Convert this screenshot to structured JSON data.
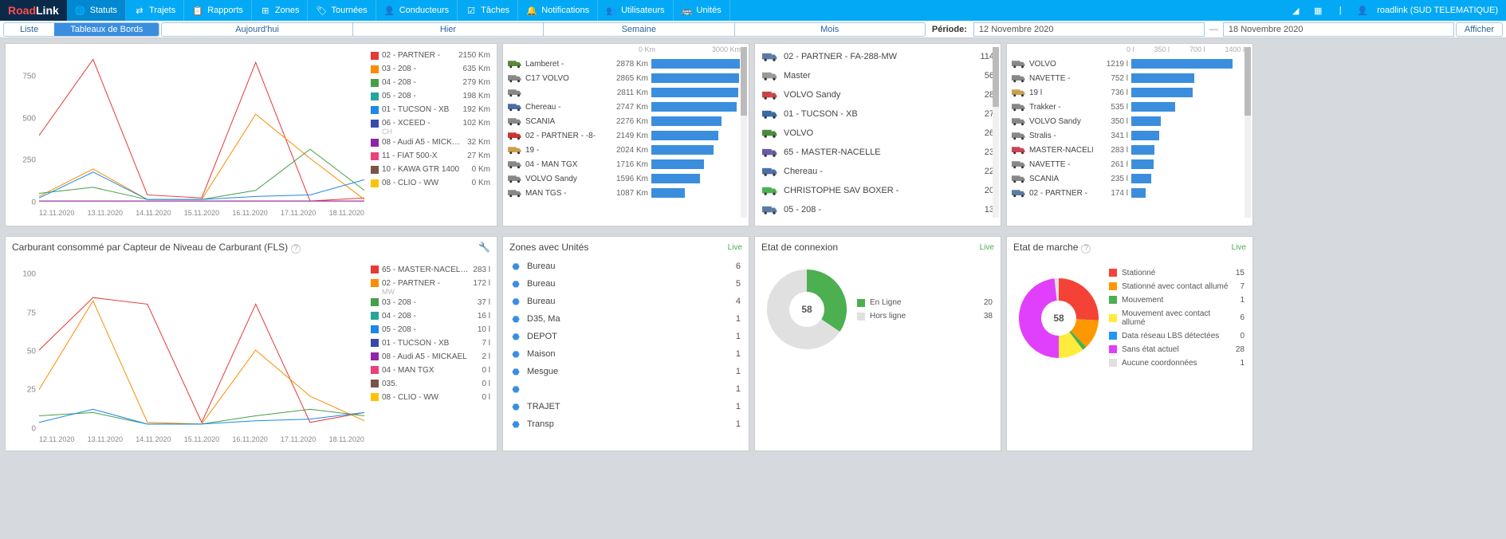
{
  "brand": {
    "road": "Road",
    "link": "Link"
  },
  "nav": [
    {
      "label": "Statuts",
      "active": true
    },
    {
      "label": "Trajets"
    },
    {
      "label": "Rapports"
    },
    {
      "label": "Zones"
    },
    {
      "label": "Tournées"
    },
    {
      "label": "Conducteurs"
    },
    {
      "label": "Tâches"
    },
    {
      "label": "Notifications"
    },
    {
      "label": "Utilisateurs"
    },
    {
      "label": "Unités"
    }
  ],
  "user": "roadlink (SUD TELEMATIQUE)",
  "view_toggle": {
    "list": "Liste",
    "dash": "Tableaux de Bords"
  },
  "time_tabs": [
    "Aujourd'hui",
    "Hier",
    "Semaine",
    "Mois"
  ],
  "period_label": "Période:",
  "date_from": "12 Novembre 2020",
  "date_to": "18 Novembre 2020",
  "show_btn": "Afficher",
  "chart1": {
    "yticks": [
      {
        "v": "0",
        "p": 100
      },
      {
        "v": "250",
        "p": 73
      },
      {
        "v": "500",
        "p": 46
      },
      {
        "v": "750",
        "p": 19
      }
    ],
    "xticks": [
      "12.11.2020",
      "13.11.2020",
      "14.11.2020",
      "15.11.2020",
      "16.11.2020",
      "17.11.2020",
      "18.11.2020"
    ],
    "series": [
      {
        "color": "#e53935",
        "pts": [
          [
            0,
            56
          ],
          [
            16.6,
            6
          ],
          [
            33.3,
            95
          ],
          [
            50,
            97
          ],
          [
            66.6,
            8
          ],
          [
            83.3,
            99
          ],
          [
            100,
            97
          ]
        ]
      },
      {
        "color": "#fb8c00",
        "pts": [
          [
            0,
            96
          ],
          [
            16.6,
            78
          ],
          [
            33.3,
            98
          ],
          [
            50,
            98
          ],
          [
            66.6,
            42
          ],
          [
            83.3,
            71
          ],
          [
            100,
            98
          ]
        ]
      },
      {
        "color": "#43a047",
        "pts": [
          [
            0,
            94
          ],
          [
            16.6,
            90
          ],
          [
            33.3,
            98
          ],
          [
            50,
            98
          ],
          [
            66.6,
            92
          ],
          [
            83.3,
            65
          ],
          [
            100,
            92
          ]
        ]
      },
      {
        "color": "#1e88e5",
        "pts": [
          [
            0,
            97
          ],
          [
            16.6,
            80
          ],
          [
            33.3,
            98
          ],
          [
            50,
            98
          ],
          [
            66.6,
            96
          ],
          [
            83.3,
            95
          ],
          [
            100,
            85
          ]
        ]
      },
      {
        "color": "#ec407a",
        "pts": [
          [
            0,
            99
          ],
          [
            16.6,
            99
          ],
          [
            33.3,
            99
          ],
          [
            50,
            99
          ],
          [
            66.6,
            99
          ],
          [
            83.3,
            99
          ],
          [
            100,
            99
          ]
        ]
      },
      {
        "color": "#8e24aa",
        "pts": [
          [
            0,
            99
          ],
          [
            16.6,
            99
          ],
          [
            33.3,
            99
          ],
          [
            50,
            99
          ],
          [
            66.6,
            99
          ],
          [
            83.3,
            99
          ],
          [
            100,
            99
          ]
        ]
      }
    ],
    "legend": [
      {
        "color": "#e53935",
        "label": "02 - PARTNER -",
        "val": "2150 Km"
      },
      {
        "color": "#fb8c00",
        "label": "03 - 208 -",
        "val": "635 Km"
      },
      {
        "color": "#43a047",
        "label": "04 - 208 -",
        "val": "279 Km"
      },
      {
        "color": "#26a69a",
        "label": "05 - 208 -",
        "val": "198 Km"
      },
      {
        "color": "#1e88e5",
        "label": "01 - TUCSON - XB",
        "val": "192 Km"
      },
      {
        "color": "#3949ab",
        "label": "06 - XCEED -",
        "sub": "CH",
        "val": "102 Km"
      },
      {
        "color": "#8e24aa",
        "label": "08 - Audi A5 - MICKAEL",
        "val": "32 Km"
      },
      {
        "color": "#ec407a",
        "label": "11 - FIAT 500-X",
        "val": "27 Km"
      },
      {
        "color": "#795548",
        "label": "10 - KAWA GTR 1400",
        "val": "0 Km"
      },
      {
        "color": "#ffc107",
        "label": "08 - CLIO - WW",
        "val": "0 Km"
      }
    ]
  },
  "fuel_panel": {
    "title": "Carburant consommé par Capteur de Niveau de Carburant (FLS)",
    "yticks": [
      {
        "v": "0",
        "p": 100
      },
      {
        "v": "25",
        "p": 77
      },
      {
        "v": "50",
        "p": 54
      },
      {
        "v": "75",
        "p": 31
      },
      {
        "v": "100",
        "p": 8
      }
    ],
    "xticks": [
      "12.11.2020",
      "13.11.2020",
      "14.11.2020",
      "15.11.2020",
      "16.11.2020",
      "17.11.2020",
      "18.11.2020"
    ],
    "series": [
      {
        "color": "#e53935",
        "pts": [
          [
            0,
            52
          ],
          [
            16.6,
            20
          ],
          [
            33.3,
            24
          ],
          [
            50,
            96
          ],
          [
            66.6,
            24
          ],
          [
            83.3,
            96
          ],
          [
            100,
            90
          ]
        ]
      },
      {
        "color": "#fb8c00",
        "pts": [
          [
            0,
            76
          ],
          [
            16.6,
            22
          ],
          [
            33.3,
            96
          ],
          [
            50,
            97
          ],
          [
            66.6,
            52
          ],
          [
            83.3,
            80
          ],
          [
            100,
            95
          ]
        ]
      },
      {
        "color": "#43a047",
        "pts": [
          [
            0,
            92
          ],
          [
            16.6,
            90
          ],
          [
            33.3,
            97
          ],
          [
            50,
            97
          ],
          [
            66.6,
            92
          ],
          [
            83.3,
            88
          ],
          [
            100,
            92
          ]
        ]
      },
      {
        "color": "#1e88e5",
        "pts": [
          [
            0,
            96
          ],
          [
            16.6,
            88
          ],
          [
            33.3,
            97
          ],
          [
            50,
            97
          ],
          [
            66.6,
            95
          ],
          [
            83.3,
            94
          ],
          [
            100,
            90
          ]
        ]
      }
    ],
    "legend": [
      {
        "color": "#e53935",
        "label": "65 - MASTER-NACELLE -",
        "val": "283 l"
      },
      {
        "color": "#fb8c00",
        "label": "02 - PARTNER -",
        "sub": "MW",
        "val": "172 l"
      },
      {
        "color": "#43a047",
        "label": "03 - 208 -",
        "val": "37 l"
      },
      {
        "color": "#26a69a",
        "label": "04 - 208 -",
        "val": "16 l"
      },
      {
        "color": "#1e88e5",
        "label": "05 - 208 -",
        "val": "10 l"
      },
      {
        "color": "#3949ab",
        "label": "01 - TUCSON - XB",
        "val": "7 l"
      },
      {
        "color": "#8e24aa",
        "label": "08 - Audi A5 - MICKAEL",
        "val": "2 l"
      },
      {
        "color": "#ec407a",
        "label": "04 - MAN TGX",
        "val": "0 l"
      },
      {
        "color": "#795548",
        "label": "035.",
        "val": "0 l"
      },
      {
        "color": "#ffc107",
        "label": "08 - CLIO - WW",
        "val": "0 l"
      }
    ]
  },
  "km_list": {
    "xscale": [
      "0 Km",
      "3000 Km"
    ],
    "rows": [
      {
        "name": "Lamberet -",
        "val": "2878 Km",
        "pct": 96,
        "c": "#5a8a3a"
      },
      {
        "name": "C17 VOLVO",
        "val": "2865 Km",
        "pct": 95,
        "c": "#888"
      },
      {
        "name": "",
        "val": "2811 Km",
        "pct": 94,
        "c": "#888"
      },
      {
        "name": "Chereau -",
        "val": "2747 Km",
        "pct": 92,
        "c": "#4a6fa5"
      },
      {
        "name": "SCANIA",
        "val": "2276 Km",
        "pct": 76,
        "c": "#888"
      },
      {
        "name": "02 - PARTNER - -8-",
        "val": "2149 Km",
        "pct": 72,
        "c": "#cc3333"
      },
      {
        "name": "19 -",
        "val": "2024 Km",
        "pct": 67,
        "c": "#c9a050"
      },
      {
        "name": "04 - MAN TGX",
        "val": "1716 Km",
        "pct": 57,
        "c": "#888"
      },
      {
        "name": "VOLVO Sandy",
        "val": "1596 Km",
        "pct": 53,
        "c": "#888"
      },
      {
        "name": "MAN TGS -",
        "val": "1087 Km",
        "pct": 36,
        "c": "#888"
      }
    ]
  },
  "trips_list": {
    "rows": [
      {
        "name": "02 - PARTNER - FA-288-MW",
        "val": "114",
        "c": "#5a7ba5"
      },
      {
        "name": "Master",
        "val": "56",
        "c": "#999"
      },
      {
        "name": "VOLVO Sandy",
        "val": "28",
        "c": "#c94545"
      },
      {
        "name": "01 - TUCSON - XB",
        "val": "27",
        "c": "#3a6aa5"
      },
      {
        "name": "VOLVO",
        "val": "26",
        "c": "#4a8a3a"
      },
      {
        "name": "65 - MASTER-NACELLE",
        "val": "23",
        "c": "#6a5aa5"
      },
      {
        "name": "Chereau -",
        "val": "22",
        "c": "#4a6fa5"
      },
      {
        "name": "CHRISTOPHE SAV BOXER -",
        "val": "20",
        "c": "#4caf50"
      },
      {
        "name": "05 - 208 -",
        "val": "13",
        "c": "#5a7ba5"
      }
    ]
  },
  "liters_list": {
    "xscale": [
      "0 l",
      "350 l",
      "700 l",
      "1400 l"
    ],
    "rows": [
      {
        "name": "VOLVO",
        "val": "1219 l",
        "pct": 87,
        "c": "#888"
      },
      {
        "name": "NAVETTE -",
        "val": "752 l",
        "pct": 54,
        "c": "#888"
      },
      {
        "name": "19 l",
        "val": "736 l",
        "pct": 53,
        "c": "#c9a050"
      },
      {
        "name": "Trakker -",
        "val": "535 l",
        "pct": 38,
        "c": "#888"
      },
      {
        "name": "VOLVO Sandy",
        "val": "350 l",
        "pct": 25,
        "c": "#888"
      },
      {
        "name": "Stralis -",
        "val": "341 l",
        "pct": 24,
        "c": "#888"
      },
      {
        "name": "MASTER-NACELLE -",
        "val": "283 l",
        "pct": 20,
        "c": "#cc4455"
      },
      {
        "name": "NAVETTE -",
        "val": "261 l",
        "pct": 19,
        "c": "#888"
      },
      {
        "name": "SCANIA",
        "val": "235 l",
        "pct": 17,
        "c": "#888"
      },
      {
        "name": "02 - PARTNER -",
        "val": "174 l",
        "pct": 12,
        "c": "#5a7ba5"
      }
    ]
  },
  "zones": {
    "title": "Zones avec Unités",
    "rows": [
      {
        "name": "Bureau",
        "val": "6"
      },
      {
        "name": "Bureau",
        "val": "5"
      },
      {
        "name": "Bureau",
        "val": "4"
      },
      {
        "name": "D35, Ma",
        "val": "1"
      },
      {
        "name": "DEPOT",
        "val": "1"
      },
      {
        "name": "Maison",
        "val": "1"
      },
      {
        "name": "Mesgue",
        "val": "1"
      },
      {
        "name": "",
        "val": "1"
      },
      {
        "name": "TRAJET",
        "val": "1"
      },
      {
        "name": "Transp",
        "val": "1"
      }
    ]
  },
  "conn": {
    "title": "Etat de connexion",
    "total": "58",
    "slices": [
      {
        "label": "En Ligne",
        "val": "20",
        "color": "#4caf50"
      },
      {
        "label": "Hors ligne",
        "val": "38",
        "color": "#e0e0e0"
      }
    ]
  },
  "march": {
    "title": "Etat de marche",
    "total": "58",
    "slices": [
      {
        "label": "Stationné",
        "val": "15",
        "color": "#f44336"
      },
      {
        "label": "Stationné avec contact allumé",
        "val": "7",
        "color": "#ff9800"
      },
      {
        "label": "Mouvement",
        "val": "1",
        "color": "#4caf50"
      },
      {
        "label": "Mouvement avec contact allumé",
        "val": "6",
        "color": "#ffeb3b"
      },
      {
        "label": "Data réseau LBS détectées",
        "val": "0",
        "color": "#2196f3"
      },
      {
        "label": "Sans état actuel",
        "val": "28",
        "color": "#e040fb"
      },
      {
        "label": "Aucune coordonnées",
        "val": "1",
        "color": "#e0e0e0"
      }
    ]
  },
  "live": "Live"
}
